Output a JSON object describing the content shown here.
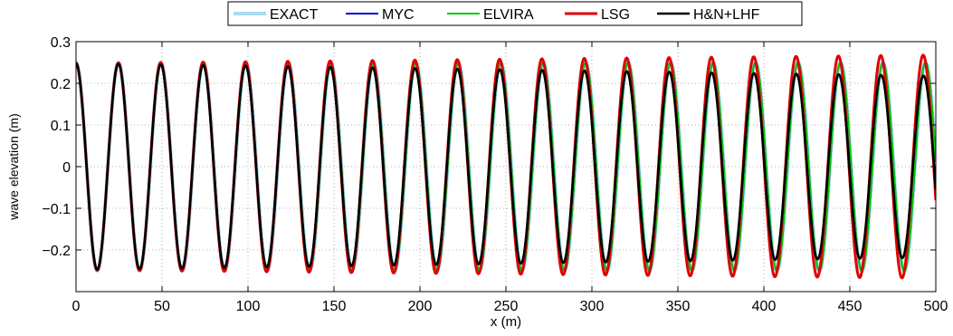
{
  "chart_data": {
    "type": "line",
    "title": "",
    "xlabel": "x (m)",
    "ylabel": "wave elevation (m)",
    "xlim": [
      0,
      500
    ],
    "ylim": [
      -0.3,
      0.3
    ],
    "xticks": [
      0,
      50,
      100,
      150,
      200,
      250,
      300,
      350,
      400,
      450,
      500
    ],
    "yticks": [
      0.3,
      0.2,
      0.1,
      0,
      -0.1,
      -0.2
    ],
    "ytick_labels": [
      "0.3",
      "0.2",
      "0.1",
      "0",
      "−0.1",
      "−0.2"
    ],
    "grid": true,
    "legend_position": "top-center",
    "wavelength": 24.7,
    "series": [
      {
        "name": "EXACT",
        "color": "#a8dcf0",
        "amplitude": [
          0.25,
          0.25
        ],
        "phase_shift": 0,
        "width": 4.0
      },
      {
        "name": "MYC",
        "color": "#0000cc",
        "amplitude": [
          0.25,
          0.25
        ],
        "phase_shift": 0,
        "width": 2.0
      },
      {
        "name": "ELVIRA",
        "color": "#00cc00",
        "amplitude": [
          0.25,
          0.25
        ],
        "phase_shift": 0,
        "width": 2.0
      },
      {
        "name": "LSG",
        "color": "#e00000",
        "amplitude": [
          0.248,
          0.268
        ],
        "phase_shift": 0.35,
        "width": 3.0
      },
      {
        "name": "H&N+LHF",
        "color": "#000000",
        "amplitude": [
          0.248,
          0.218
        ],
        "phase_shift": 0.3,
        "width": 2.6
      }
    ]
  }
}
